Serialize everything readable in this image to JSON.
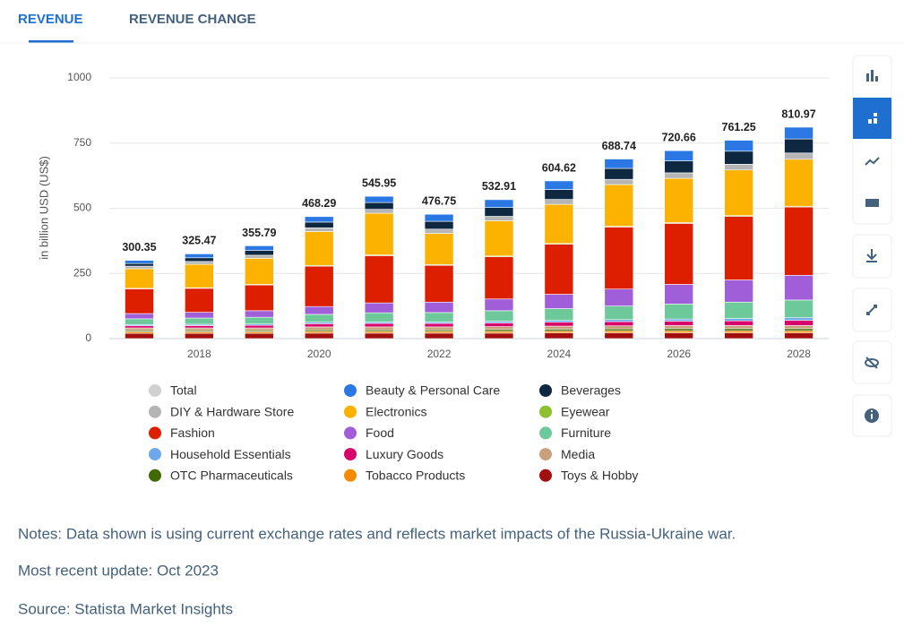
{
  "tabs": [
    "REVENUE",
    "REVENUE CHANGE"
  ],
  "chart_data": {
    "type": "bar",
    "stacked": true,
    "y_label": "in billion USD (US$)",
    "categories": [
      null,
      "2018",
      null,
      "2020",
      null,
      "2022",
      null,
      "2024",
      null,
      "2026",
      null,
      "2028"
    ],
    "ylim": [
      0,
      1000
    ],
    "yticks": [
      0,
      250,
      500,
      750,
      1000
    ],
    "grid": true,
    "series": [
      {
        "name": "Total",
        "color": "#cccccc",
        "visible": false,
        "values": [
          300.35,
          325.47,
          355.79,
          468.29,
          545.95,
          476.75,
          532.91,
          604.62,
          688.74,
          720.66,
          761.25,
          810.97
        ]
      },
      {
        "name": "Beauty & Personal Care",
        "color": "#2b78e4",
        "values": [
          12,
          15,
          18,
          21,
          24,
          27,
          30,
          33,
          36,
          39,
          42,
          45
        ]
      },
      {
        "name": "Beverages",
        "color": "#0e2841",
        "values": [
          10,
          14,
          18,
          22,
          26,
          30,
          34,
          38,
          42,
          46,
          50,
          54
        ]
      },
      {
        "name": "DIY & Hardware Store",
        "color": "#b5b5b5",
        "values": [
          10,
          11,
          12,
          14,
          15,
          16,
          17,
          19,
          20,
          21,
          22,
          24
        ]
      },
      {
        "name": "Electronics",
        "color": "#fbb200",
        "values": [
          75,
          90,
          100,
          130,
          160,
          120,
          135,
          150,
          160,
          170,
          175,
          180
        ]
      },
      {
        "name": "Eyewear",
        "color": "#8dbf2e",
        "values": [
          2,
          2,
          2,
          3,
          3,
          3,
          3,
          3,
          3,
          3,
          3,
          3
        ]
      },
      {
        "name": "Fashion",
        "color": "#dd1f00",
        "values": [
          95,
          92,
          99,
          155,
          181,
          141,
          162,
          192,
          238,
          234,
          244,
          262
        ]
      },
      {
        "name": "Food",
        "color": "#a05ed9",
        "values": [
          20,
          22,
          25,
          30,
          38,
          40,
          45,
          55,
          65,
          75,
          85,
          95
        ]
      },
      {
        "name": "Furniture",
        "color": "#6dc999",
        "values": [
          22,
          24,
          26,
          30,
          35,
          36,
          40,
          45,
          52,
          58,
          63,
          68
        ]
      },
      {
        "name": "Household Essentials",
        "color": "#6fa8ea",
        "values": [
          5,
          5,
          5,
          6,
          6,
          6,
          7,
          7,
          8,
          8,
          9,
          10
        ]
      },
      {
        "name": "Luxury Goods",
        "color": "#d8006a",
        "values": [
          8,
          9,
          10,
          12,
          13,
          13,
          14,
          15,
          16,
          17,
          18,
          20
        ]
      },
      {
        "name": "Media",
        "color": "#c8a07a",
        "values": [
          10,
          10,
          10,
          11,
          11,
          11,
          11,
          12,
          12,
          12,
          12,
          12
        ]
      },
      {
        "name": "OTC Pharmaceuticals",
        "color": "#3f6b00",
        "values": [
          5,
          5,
          5,
          6,
          6,
          6,
          7,
          7,
          7,
          8,
          8,
          8
        ]
      },
      {
        "name": "Tobacco Products",
        "color": "#f38a00",
        "values": [
          6,
          6,
          6,
          7,
          7,
          7,
          7,
          7,
          8,
          8,
          8,
          8
        ]
      },
      {
        "name": "Toys & Hobby",
        "color": "#a10f0f",
        "values": [
          20,
          20,
          20,
          21,
          21,
          21,
          21,
          22,
          22,
          22,
          22,
          22
        ]
      }
    ]
  },
  "notes": [
    "Notes: Data shown is using current exchange rates and reflects market impacts of the Russia-Ukraine war.",
    "Most recent update: Oct 2023",
    "Source: Statista Market Insights"
  ]
}
